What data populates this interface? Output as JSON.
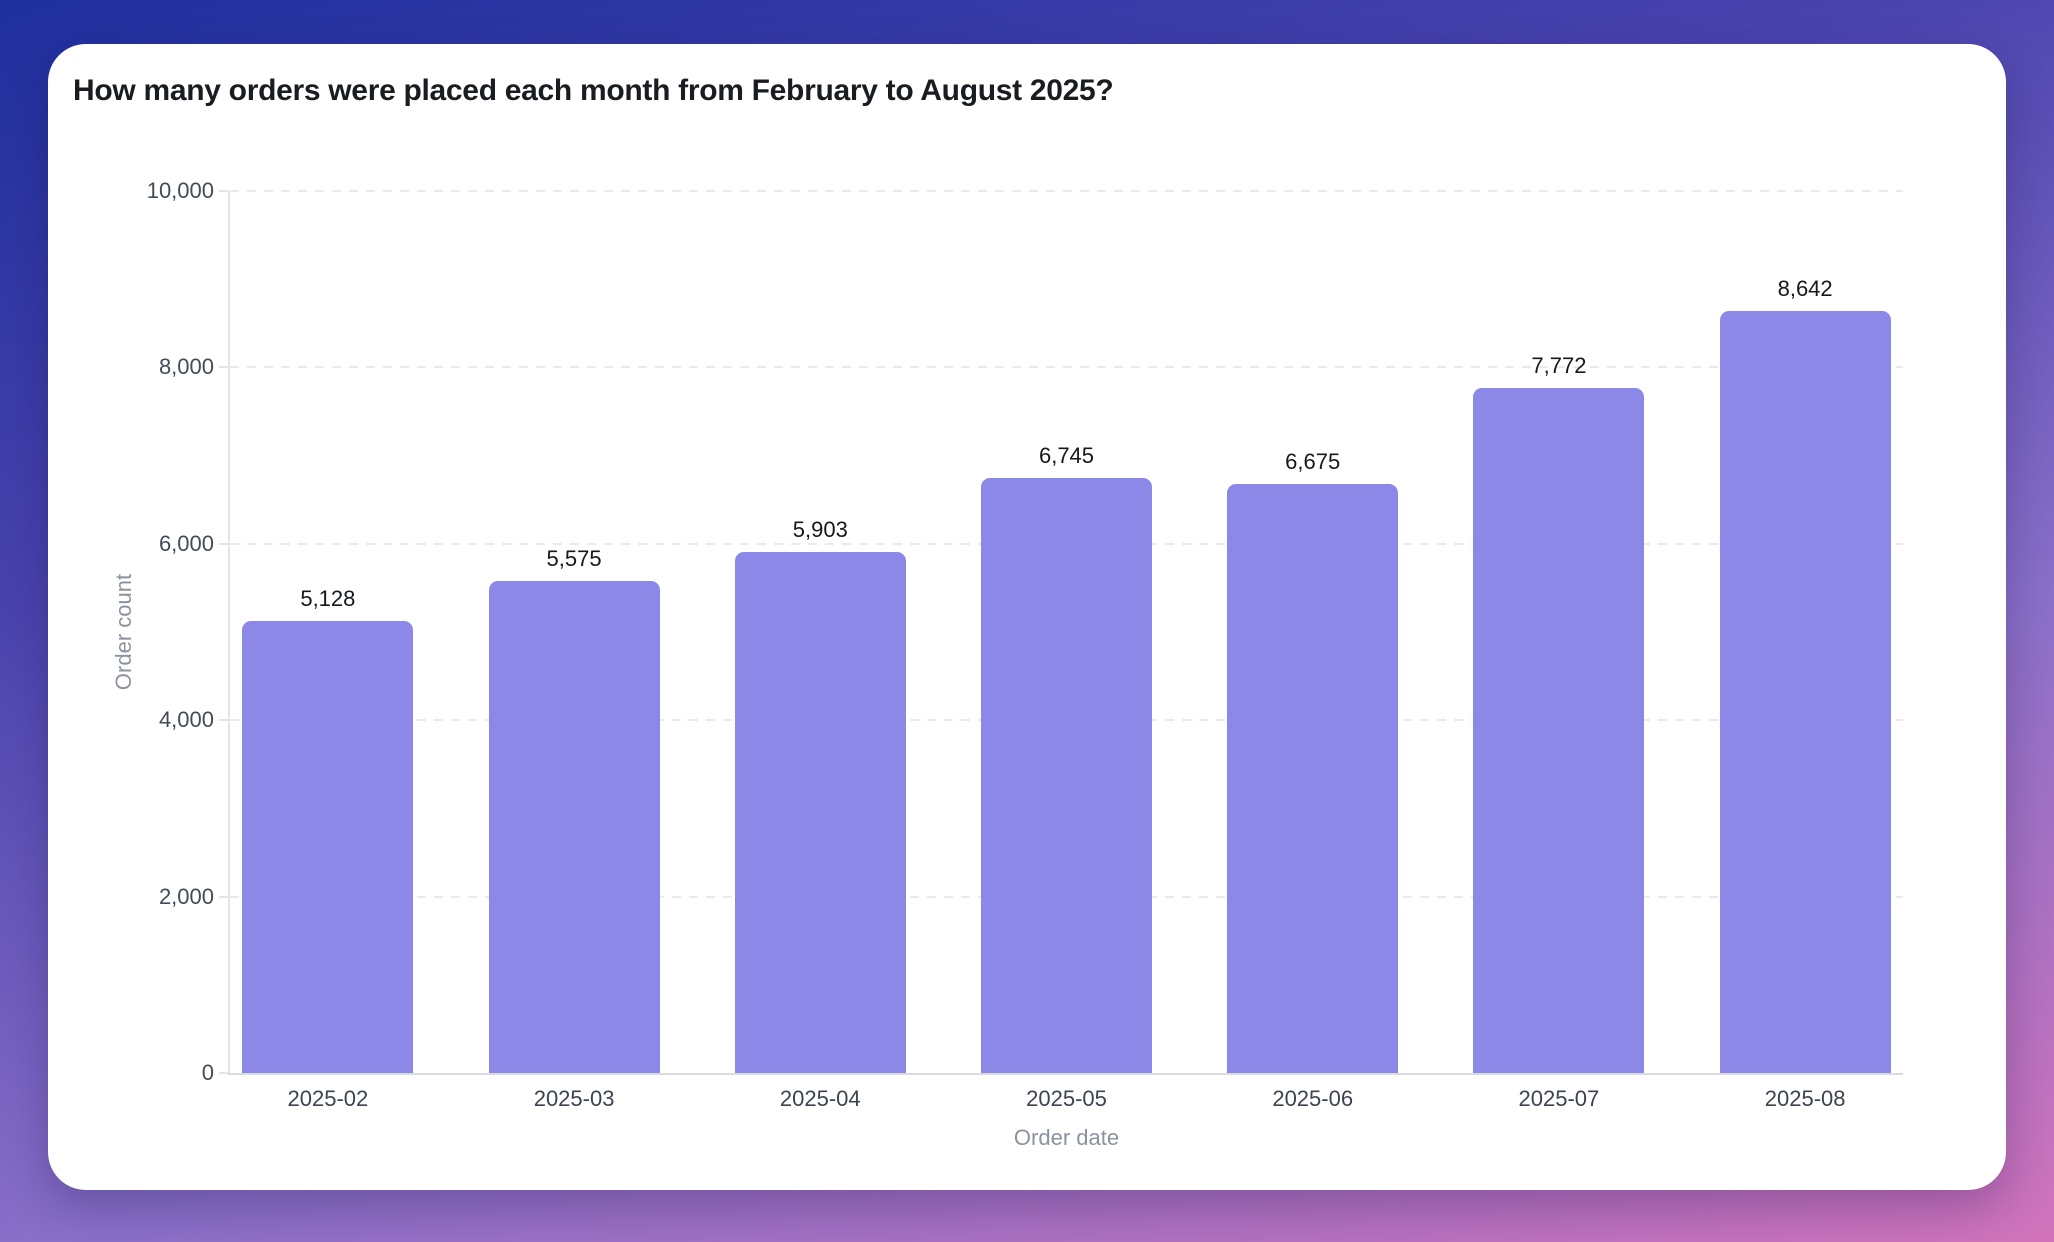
{
  "page": {
    "title": "How many orders were placed each month from February to August 2025?"
  },
  "colors": {
    "background_gradient": [
      "#1e2f9d",
      "#4a43ae",
      "#8a70c9",
      "#d173bb"
    ],
    "card_background": "#ffffff",
    "bar_color": "#8b88e8",
    "gridline_color": "#e9eaef",
    "axis_line_color": "#e3e5ea",
    "baseline_color": "#d8dbe0",
    "tick_label_color": "#434b57",
    "value_label_color": "#15181e",
    "axis_title_color": "#8c939f",
    "title_color": "#191c21"
  },
  "chart_data": {
    "type": "bar",
    "title": "How many orders were placed each month from February to August 2025?",
    "categories": [
      "2025-02",
      "2025-03",
      "2025-04",
      "2025-05",
      "2025-06",
      "2025-07",
      "2025-08"
    ],
    "values": [
      5128,
      5575,
      5903,
      6745,
      6675,
      7772,
      8642
    ],
    "value_labels": [
      "5,128",
      "5,575",
      "5,903",
      "6,745",
      "6,675",
      "7,772",
      "8,642"
    ],
    "xlabel": "Order date",
    "ylabel": "Order count",
    "ylim": [
      0,
      10000
    ],
    "yticks": [
      0,
      2000,
      4000,
      6000,
      8000,
      10000
    ],
    "ytick_labels": [
      "0",
      "2,000",
      "4,000",
      "6,000",
      "8,000",
      "10,000"
    ],
    "grid": "horizontal-dashed",
    "legend": "none",
    "bar_color": "#8b88e8"
  }
}
